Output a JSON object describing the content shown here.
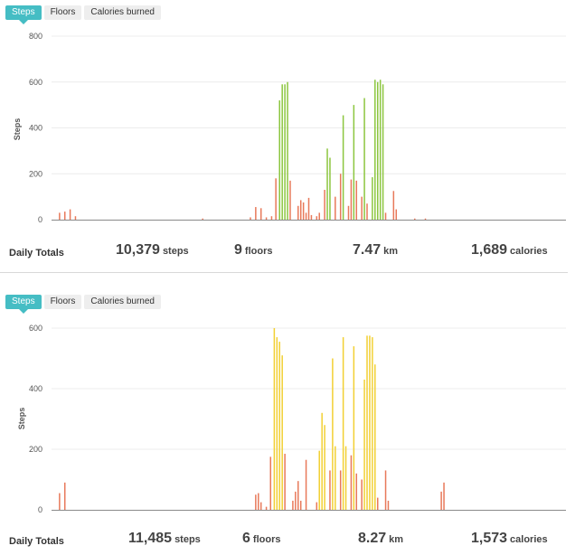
{
  "panels": [
    {
      "tabs": [
        {
          "label": "Steps",
          "active": true
        },
        {
          "label": "Floors",
          "active": false
        },
        {
          "label": "Calories burned",
          "active": false
        }
      ],
      "totals": {
        "label": "Daily Totals",
        "steps": {
          "value": "10,379",
          "unit": "steps"
        },
        "floors": {
          "value": "9",
          "unit": "floors"
        },
        "distance": {
          "value": "7.47",
          "unit": "km"
        },
        "calories": {
          "value": "1,689",
          "unit": "calories"
        }
      }
    },
    {
      "tabs": [
        {
          "label": "Steps",
          "active": true
        },
        {
          "label": "Floors",
          "active": false
        },
        {
          "label": "Calories burned",
          "active": false
        }
      ],
      "totals": {
        "label": "Daily Totals",
        "steps": {
          "value": "11,485",
          "unit": "steps"
        },
        "floors": {
          "value": "6",
          "unit": "floors"
        },
        "distance": {
          "value": "8.27",
          "unit": "km"
        },
        "calories": {
          "value": "1,573",
          "unit": "calories"
        }
      }
    }
  ],
  "chart_data": [
    {
      "type": "bar",
      "ylabel": "Steps",
      "ylim": [
        0,
        800
      ],
      "yticks": [
        0,
        200,
        400,
        600,
        800
      ],
      "grid": true,
      "x_range": [
        0,
        96
      ],
      "colors": {
        "low": "#e8795a",
        "high": "#8cc63f"
      },
      "bars": [
        {
          "x": 1,
          "y": 30,
          "level": "low"
        },
        {
          "x": 2,
          "y": 35,
          "level": "low"
        },
        {
          "x": 3,
          "y": 45,
          "level": "low"
        },
        {
          "x": 4,
          "y": 15,
          "level": "low"
        },
        {
          "x": 28,
          "y": 5,
          "level": "low"
        },
        {
          "x": 37,
          "y": 10,
          "level": "low"
        },
        {
          "x": 38,
          "y": 55,
          "level": "low"
        },
        {
          "x": 39,
          "y": 50,
          "level": "low"
        },
        {
          "x": 40,
          "y": 10,
          "level": "low"
        },
        {
          "x": 41,
          "y": 15,
          "level": "low"
        },
        {
          "x": 41.8,
          "y": 180,
          "level": "low"
        },
        {
          "x": 42.5,
          "y": 520,
          "level": "high"
        },
        {
          "x": 43,
          "y": 590,
          "level": "high"
        },
        {
          "x": 43.5,
          "y": 590,
          "level": "high"
        },
        {
          "x": 44,
          "y": 600,
          "level": "high"
        },
        {
          "x": 44.5,
          "y": 170,
          "level": "low"
        },
        {
          "x": 46,
          "y": 60,
          "level": "low"
        },
        {
          "x": 46.5,
          "y": 85,
          "level": "low"
        },
        {
          "x": 47,
          "y": 75,
          "level": "low"
        },
        {
          "x": 47.5,
          "y": 30,
          "level": "low"
        },
        {
          "x": 48,
          "y": 95,
          "level": "low"
        },
        {
          "x": 48.5,
          "y": 20,
          "level": "low"
        },
        {
          "x": 49.5,
          "y": 15,
          "level": "low"
        },
        {
          "x": 50,
          "y": 30,
          "level": "low"
        },
        {
          "x": 51,
          "y": 130,
          "level": "low"
        },
        {
          "x": 51.5,
          "y": 310,
          "level": "high"
        },
        {
          "x": 52,
          "y": 270,
          "level": "high"
        },
        {
          "x": 53,
          "y": 100,
          "level": "low"
        },
        {
          "x": 54,
          "y": 200,
          "level": "low"
        },
        {
          "x": 54.5,
          "y": 455,
          "level": "high"
        },
        {
          "x": 55.5,
          "y": 60,
          "level": "low"
        },
        {
          "x": 56,
          "y": 175,
          "level": "low"
        },
        {
          "x": 56.5,
          "y": 500,
          "level": "high"
        },
        {
          "x": 57,
          "y": 170,
          "level": "low"
        },
        {
          "x": 58,
          "y": 100,
          "level": "low"
        },
        {
          "x": 58.5,
          "y": 530,
          "level": "high"
        },
        {
          "x": 59,
          "y": 70,
          "level": "low"
        },
        {
          "x": 60,
          "y": 185,
          "level": "high"
        },
        {
          "x": 60.5,
          "y": 610,
          "level": "high"
        },
        {
          "x": 61,
          "y": 600,
          "level": "high"
        },
        {
          "x": 61.5,
          "y": 610,
          "level": "high"
        },
        {
          "x": 62,
          "y": 590,
          "level": "high"
        },
        {
          "x": 62.5,
          "y": 30,
          "level": "low"
        },
        {
          "x": 64,
          "y": 125,
          "level": "low"
        },
        {
          "x": 64.5,
          "y": 45,
          "level": "low"
        },
        {
          "x": 68,
          "y": 5,
          "level": "low"
        },
        {
          "x": 70,
          "y": 5,
          "level": "low"
        }
      ]
    },
    {
      "type": "bar",
      "ylabel": "Steps",
      "ylim": [
        0,
        600
      ],
      "yticks": [
        0,
        200,
        400,
        600
      ],
      "grid": true,
      "x_range": [
        0,
        96
      ],
      "colors": {
        "low": "#e8795a",
        "high": "#f2d033"
      },
      "bars": [
        {
          "x": 1,
          "y": 55,
          "level": "low"
        },
        {
          "x": 2,
          "y": 90,
          "level": "low"
        },
        {
          "x": 38,
          "y": 50,
          "level": "low"
        },
        {
          "x": 38.5,
          "y": 55,
          "level": "low"
        },
        {
          "x": 39,
          "y": 25,
          "level": "low"
        },
        {
          "x": 40,
          "y": 10,
          "level": "low"
        },
        {
          "x": 40.8,
          "y": 175,
          "level": "low"
        },
        {
          "x": 41.5,
          "y": 600,
          "level": "high"
        },
        {
          "x": 42,
          "y": 570,
          "level": "high"
        },
        {
          "x": 42.5,
          "y": 555,
          "level": "high"
        },
        {
          "x": 43,
          "y": 510,
          "level": "high"
        },
        {
          "x": 43.5,
          "y": 185,
          "level": "low"
        },
        {
          "x": 45,
          "y": 30,
          "level": "low"
        },
        {
          "x": 45.5,
          "y": 60,
          "level": "low"
        },
        {
          "x": 46,
          "y": 95,
          "level": "low"
        },
        {
          "x": 46.5,
          "y": 30,
          "level": "low"
        },
        {
          "x": 47.5,
          "y": 165,
          "level": "low"
        },
        {
          "x": 49.5,
          "y": 25,
          "level": "low"
        },
        {
          "x": 50,
          "y": 195,
          "level": "high"
        },
        {
          "x": 50.5,
          "y": 320,
          "level": "high"
        },
        {
          "x": 51,
          "y": 280,
          "level": "high"
        },
        {
          "x": 52,
          "y": 130,
          "level": "low"
        },
        {
          "x": 52.5,
          "y": 500,
          "level": "high"
        },
        {
          "x": 53,
          "y": 210,
          "level": "high"
        },
        {
          "x": 54,
          "y": 130,
          "level": "low"
        },
        {
          "x": 54.5,
          "y": 570,
          "level": "high"
        },
        {
          "x": 55,
          "y": 210,
          "level": "high"
        },
        {
          "x": 56,
          "y": 180,
          "level": "low"
        },
        {
          "x": 56.5,
          "y": 540,
          "level": "high"
        },
        {
          "x": 57,
          "y": 120,
          "level": "low"
        },
        {
          "x": 58,
          "y": 100,
          "level": "low"
        },
        {
          "x": 58.5,
          "y": 430,
          "level": "high"
        },
        {
          "x": 59,
          "y": 575,
          "level": "high"
        },
        {
          "x": 59.5,
          "y": 575,
          "level": "high"
        },
        {
          "x": 60,
          "y": 570,
          "level": "high"
        },
        {
          "x": 60.5,
          "y": 480,
          "level": "high"
        },
        {
          "x": 61,
          "y": 40,
          "level": "low"
        },
        {
          "x": 62.5,
          "y": 130,
          "level": "low"
        },
        {
          "x": 63,
          "y": 30,
          "level": "low"
        },
        {
          "x": 73,
          "y": 60,
          "level": "low"
        },
        {
          "x": 73.5,
          "y": 90,
          "level": "low"
        }
      ]
    }
  ]
}
